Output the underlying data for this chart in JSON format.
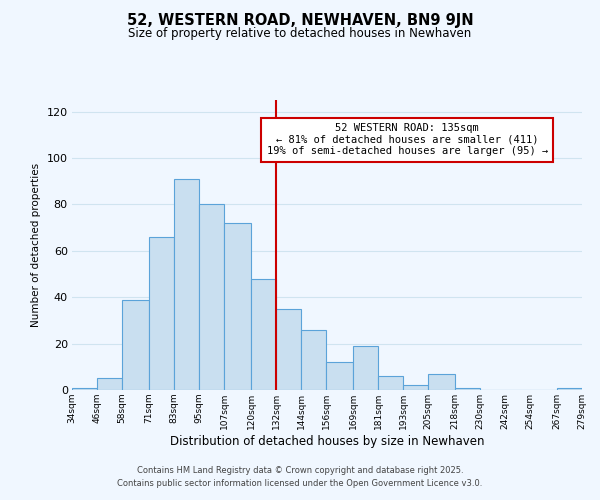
{
  "title": "52, WESTERN ROAD, NEWHAVEN, BN9 9JN",
  "subtitle": "Size of property relative to detached houses in Newhaven",
  "xlabel": "Distribution of detached houses by size in Newhaven",
  "ylabel": "Number of detached properties",
  "bin_edges": [
    34,
    46,
    58,
    71,
    83,
    95,
    107,
    120,
    132,
    144,
    156,
    169,
    181,
    193,
    205,
    218,
    230,
    242,
    254,
    267,
    279
  ],
  "bar_heights": [
    1,
    5,
    39,
    66,
    91,
    80,
    72,
    48,
    35,
    26,
    12,
    19,
    6,
    2,
    7,
    1,
    0,
    0,
    0,
    1
  ],
  "bar_color": "#c9dff0",
  "bar_edgecolor": "#5ba3d9",
  "vline_x": 132,
  "vline_color": "#cc0000",
  "ylim": [
    0,
    125
  ],
  "yticks": [
    0,
    20,
    40,
    60,
    80,
    100,
    120
  ],
  "annotation_title": "52 WESTERN ROAD: 135sqm",
  "annotation_line1": "← 81% of detached houses are smaller (411)",
  "annotation_line2": "19% of semi-detached houses are larger (95) →",
  "annotation_box_color": "#cc0000",
  "annotation_bg": "#ffffff",
  "grid_color": "#d0e4f0",
  "background_color": "#f0f7ff",
  "footer1": "Contains HM Land Registry data © Crown copyright and database right 2025.",
  "footer2": "Contains public sector information licensed under the Open Government Licence v3.0.",
  "tick_labels": [
    "34sqm",
    "46sqm",
    "58sqm",
    "71sqm",
    "83sqm",
    "95sqm",
    "107sqm",
    "120sqm",
    "132sqm",
    "144sqm",
    "156sqm",
    "169sqm",
    "181sqm",
    "193sqm",
    "205sqm",
    "218sqm",
    "230sqm",
    "242sqm",
    "254sqm",
    "267sqm",
    "279sqm"
  ]
}
